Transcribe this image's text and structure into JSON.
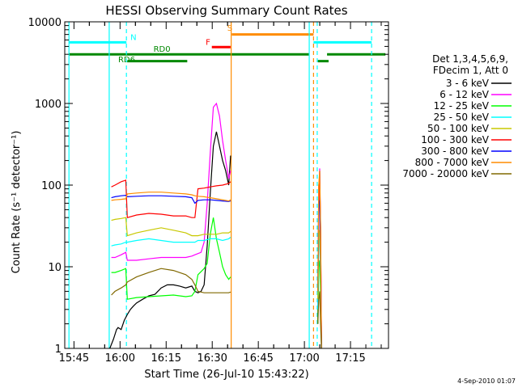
{
  "chart_data": {
    "type": "line",
    "title": "HESSI Observing Summary Count Rates",
    "xlabel": "Start Time (26-Jul-10 15:43:22)",
    "ylabel": "Count Rate (s⁻¹ detector⁻¹)",
    "yscale": "log",
    "ylim": [
      1,
      10000
    ],
    "xlim_minutes": [
      -1.37,
      104
    ],
    "x_ticks": [
      "15:45",
      "16:00",
      "16:15",
      "16:30",
      "16:45",
      "17:00",
      "17:15"
    ],
    "x_tick_minutes": [
      1.63,
      16.63,
      31.63,
      46.63,
      61.63,
      76.63,
      91.63
    ],
    "y_ticks": [
      "1",
      "10",
      "100",
      "1000",
      "10000"
    ],
    "y_tick_values": [
      1,
      10,
      100,
      1000,
      10000
    ],
    "date_stamp": "4-Sep-2010 01:07",
    "legend_title": [
      "Det 1,3,4,5,6,9,",
      "FDecim 1, Att 0"
    ],
    "legend_position": "right",
    "series": [
      {
        "name": "3 - 6 keV",
        "color": "#000000",
        "x": [
          13.3,
          14.5,
          15.5,
          16.0,
          17.0,
          18.0,
          19.0,
          20.0,
          21.0,
          22.0,
          24.0,
          26.0,
          28.0,
          30.0,
          32.0,
          34.0,
          36.0,
          38.0,
          40.0,
          41.0,
          42.0,
          43.0,
          44.0,
          45.0,
          46.0,
          47.0,
          48.0,
          49.0,
          50.0,
          51.0,
          52.0,
          52.6
        ],
        "y": [
          1.0,
          1.3,
          1.7,
          1.8,
          1.7,
          2.2,
          2.6,
          3.0,
          3.3,
          3.6,
          4.0,
          4.4,
          4.6,
          5.5,
          6.0,
          6.0,
          5.8,
          5.5,
          5.8,
          5.0,
          4.8,
          5.0,
          6.0,
          18.0,
          80.0,
          300.0,
          450.0,
          300.0,
          200.0,
          150.0,
          100.0,
          230.0
        ]
      },
      {
        "name": "6 - 12 keV",
        "color": "#ff00ff",
        "x": [
          13.8,
          15.0,
          17.0,
          18.5,
          19.0,
          22.0,
          26.0,
          30.0,
          34.0,
          38.0,
          40.0,
          41.0,
          42.0,
          43.0,
          44.0,
          45.0,
          46.0,
          47.0,
          48.0,
          49.0,
          50.0,
          51.0,
          52.0,
          52.6
        ],
        "y": [
          13.0,
          13.0,
          14.0,
          15.0,
          12.0,
          12.0,
          12.5,
          13.0,
          13.0,
          13.0,
          13.5,
          14.0,
          14.5,
          15.0,
          20.0,
          60.0,
          250.0,
          900.0,
          1000.0,
          700.0,
          350.0,
          200.0,
          120.0,
          150.0
        ]
      },
      {
        "name": "12 - 25 keV",
        "color": "#00ff00",
        "x": [
          13.8,
          15.0,
          17.0,
          18.5,
          19.0,
          22.0,
          26.0,
          30.0,
          34.0,
          38.0,
          40.0,
          41.0,
          42.0,
          44.0,
          45.0,
          46.0,
          47.0,
          48.0,
          49.0,
          50.0,
          51.0,
          52.0,
          52.6
        ],
        "y": [
          8.5,
          8.5,
          9.0,
          9.5,
          4.0,
          4.2,
          4.3,
          4.4,
          4.5,
          4.3,
          4.4,
          5.0,
          8.0,
          9.5,
          11.0,
          25.0,
          40.0,
          22.0,
          15.0,
          10.0,
          8.0,
          7.0,
          7.5
        ]
      },
      {
        "name": "25 - 50 keV",
        "color": "#00ffff",
        "x": [
          13.8,
          15.0,
          17.0,
          18.5,
          19.0,
          22.0,
          26.0,
          30.0,
          34.0,
          38.0,
          40.0,
          41.0,
          42.0,
          44.0,
          46.0,
          48.0,
          50.0,
          52.0,
          52.6
        ],
        "y": [
          18.0,
          18.5,
          19.0,
          20.0,
          20.0,
          21.0,
          22.0,
          21.0,
          20.0,
          20.0,
          20.0,
          20.0,
          21.0,
          21.0,
          22.0,
          22.0,
          21.0,
          22.0,
          23.0
        ]
      },
      {
        "name": "50 - 100 keV",
        "color": "#c8c800",
        "x": [
          13.8,
          15.0,
          17.0,
          18.5,
          19.0,
          22.0,
          26.0,
          30.0,
          34.0,
          38.0,
          40.0,
          41.0,
          42.0,
          44.0,
          46.0,
          48.0,
          50.0,
          52.0,
          52.6
        ],
        "y": [
          37.0,
          38.0,
          39.0,
          40.0,
          24.0,
          26.0,
          28.0,
          30.0,
          28.0,
          26.0,
          24.0,
          24.0,
          24.0,
          25.0,
          25.0,
          25.0,
          26.0,
          26.0,
          27.0
        ]
      },
      {
        "name": "100 - 300 keV",
        "color": "#ff0000",
        "x": [
          13.8,
          15.0,
          17.0,
          18.5,
          19.0,
          22.0,
          26.0,
          30.0,
          34.0,
          38.0,
          40.0,
          41.0,
          42.0,
          44.0,
          46.0,
          48.0,
          50.0,
          52.0,
          52.6
        ],
        "y": [
          95.0,
          100.0,
          110.0,
          115.0,
          40.0,
          43.0,
          45.0,
          44.0,
          42.0,
          42.0,
          40.0,
          40.0,
          90.0,
          92.0,
          95.0,
          98.0,
          100.0,
          105.0,
          110.0
        ]
      },
      {
        "name": "300 - 800 keV",
        "color": "#0000ff",
        "x": [
          13.8,
          15.0,
          17.0,
          18.5,
          19.0,
          22.0,
          26.0,
          30.0,
          34.0,
          38.0,
          40.0,
          41.0,
          42.0,
          44.0,
          46.0,
          48.0,
          50.0,
          52.0,
          52.6
        ],
        "y": [
          70.0,
          72.0,
          74.0,
          75.0,
          72.0,
          73.0,
          74.0,
          74.0,
          73.0,
          72.0,
          70.0,
          60.0,
          65.0,
          66.0,
          66.0,
          65.0,
          64.0,
          63.0,
          64.0
        ]
      },
      {
        "name": "800 - 7000 keV",
        "color": "#ff8c00",
        "x": [
          13.8,
          15.0,
          17.0,
          18.5,
          19.0,
          22.0,
          26.0,
          30.0,
          34.0,
          38.0,
          40.0,
          41.0,
          42.0,
          44.0,
          46.0,
          48.0,
          50.0,
          52.0,
          52.6
        ],
        "y": [
          65.0,
          66.0,
          67.0,
          68.0,
          78.0,
          80.0,
          82.0,
          82.0,
          80.0,
          78.0,
          76.0,
          74.0,
          73.0,
          72.0,
          70.0,
          68.0,
          66.0,
          64.0,
          66.0
        ]
      },
      {
        "name": "7000 - 20000 keV",
        "color": "#806800",
        "x": [
          13.8,
          15.0,
          17.0,
          18.5,
          19.0,
          22.0,
          26.0,
          30.0,
          34.0,
          38.0,
          40.0,
          41.0,
          42.0,
          44.0,
          46.0,
          48.0,
          50.0,
          52.0,
          52.6
        ],
        "y": [
          4.5,
          5.0,
          5.5,
          6.0,
          6.5,
          7.5,
          8.5,
          9.5,
          9.0,
          8.0,
          7.0,
          6.0,
          5.0,
          4.8,
          4.8,
          4.8,
          4.8,
          4.8,
          4.9
        ]
      }
    ],
    "second_pass": {
      "x": [
        81.0,
        81.3,
        81.6,
        81.9,
        82.2
      ],
      "series_y": {
        "3 - 6 keV": [
          2.0,
          40.0,
          150.0,
          20.0,
          1.0
        ],
        "6 - 12 keV": [
          3.0,
          45.0,
          160.0,
          25.0,
          1.2
        ],
        "12 - 25 keV": [
          2.0,
          10.0,
          12.0,
          4.0,
          1.0
        ],
        "25 - 50 keV": [
          3.0,
          20.0,
          22.0,
          8.0,
          1.0
        ],
        "50 - 100 keV": [
          4.0,
          25.0,
          28.0,
          10.0,
          1.0
        ],
        "100 - 300 keV": [
          5.0,
          100.0,
          110.0,
          30.0,
          1.0
        ],
        "300 - 800 keV": [
          5.0,
          60.0,
          65.0,
          20.0,
          1.0
        ],
        "800 - 7000 keV": [
          5.0,
          100.0,
          150.0,
          30.0,
          1.0
        ],
        "7000 - 20000 keV": [
          2.0,
          4.0,
          5.0,
          2.0,
          1.0
        ]
      }
    },
    "vertical_lines": [
      {
        "minute": 0.0,
        "color": "#00ffff",
        "style": "solid"
      },
      {
        "minute": 13.1,
        "color": "#00ffff",
        "style": "solid"
      },
      {
        "minute": 18.7,
        "color": "#00ffff",
        "style": "dashed"
      },
      {
        "minute": 52.8,
        "color": "#ff8c00",
        "style": "solid"
      },
      {
        "minute": 78.2,
        "color": "#00ffff",
        "style": "solid"
      },
      {
        "minute": 79.6,
        "color": "#ff8c00",
        "style": "dashed"
      },
      {
        "minute": 80.8,
        "color": "#00ffff",
        "style": "dashed"
      },
      {
        "minute": 98.5,
        "color": "#00ffff",
        "style": "dashed"
      }
    ],
    "status_bars": [
      {
        "label": "N",
        "color": "#00ffff",
        "y": 5600,
        "segments": [
          [
            0.0,
            18.7
          ],
          [
            79.6,
            98.5
          ]
        ],
        "label_minute": 20.0,
        "label_y": 6000,
        "label_color": "#00ffff"
      },
      {
        "label": "S",
        "color": "#ff8c00",
        "y": 7000,
        "segments": [
          [
            53.0,
            79.6
          ]
        ],
        "label_minute": 51.5,
        "label_y": 7800,
        "label_color": "#ff8c00"
      },
      {
        "label": "F",
        "color": "#ff0000",
        "y": 4900,
        "segments": [
          [
            46.5,
            52.6
          ]
        ],
        "label_minute": 44.5,
        "label_y": 5200,
        "label_color": "#ff0000"
      },
      {
        "label": "RD0",
        "color": "#008800",
        "y": 4000,
        "segments": [
          [
            0.0,
            78.2
          ],
          [
            84.0,
            103.0
          ]
        ],
        "label_minute": 27.5,
        "label_y": 4300,
        "label_color": "#008800"
      },
      {
        "label": "RD6",
        "color": "#008800",
        "y": 3300,
        "segments": [
          [
            19.0,
            38.5
          ],
          [
            81.0,
            84.5
          ]
        ],
        "label_minute": 16.0,
        "label_y": 3200,
        "label_color": "#008800"
      }
    ]
  }
}
